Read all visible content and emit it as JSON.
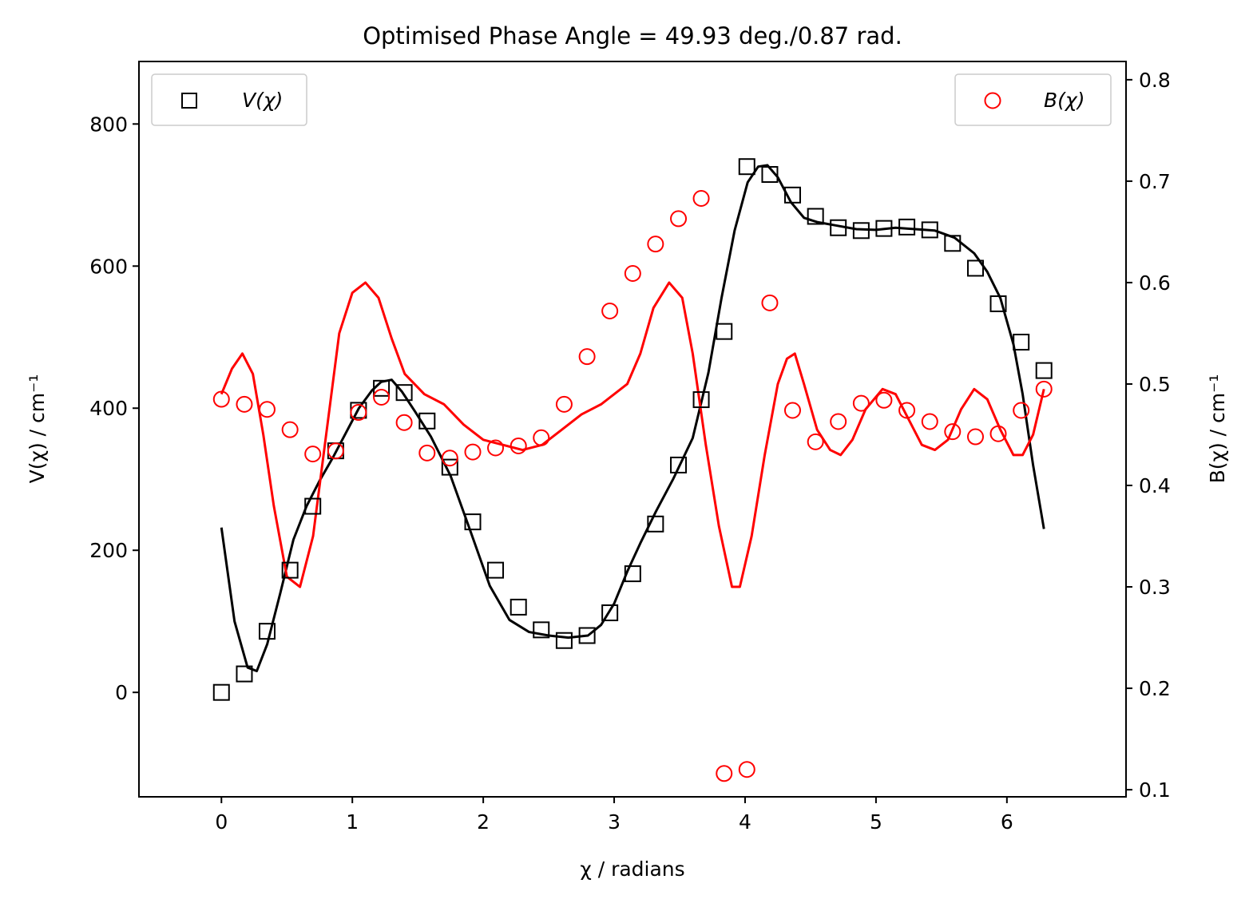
{
  "chart_data": {
    "type": "scatter",
    "title": "Optimised Phase Angle = 49.93 deg./0.87 rad.",
    "xlabel": "χ / radians",
    "ylabel_left": "V(χ) / cm⁻¹",
    "ylabel_right": "B(χ) / cm⁻¹",
    "xlim": [
      -0.63,
      6.91
    ],
    "ylim_left": [
      -147,
      888
    ],
    "ylim_right": [
      0.093,
      0.818
    ],
    "xticks": [
      0,
      1,
      2,
      3,
      4,
      5,
      6
    ],
    "yticks_left": [
      0,
      200,
      400,
      600,
      800
    ],
    "yticks_right": [
      0.1,
      0.2,
      0.3,
      0.4,
      0.5,
      0.6,
      0.7,
      0.8
    ],
    "legend_left": {
      "label": "V(χ)",
      "position": "upper left"
    },
    "legend_right": {
      "label": "B(χ)",
      "position": "upper right"
    },
    "colors": {
      "V": "#000000",
      "B": "#ff0000"
    },
    "series": [
      {
        "name": "V(χ)",
        "axis": "left",
        "marker": "square",
        "x": [
          0.0,
          0.175,
          0.349,
          0.524,
          0.698,
          0.873,
          1.047,
          1.222,
          1.396,
          1.571,
          1.745,
          1.92,
          2.094,
          2.269,
          2.443,
          2.618,
          2.793,
          2.967,
          3.142,
          3.316,
          3.491,
          3.665,
          3.84,
          4.014,
          4.189,
          4.363,
          4.538,
          4.712,
          4.887,
          5.061,
          5.236,
          5.411,
          5.585,
          5.76,
          5.934,
          6.109,
          6.283
        ],
        "y": [
          0,
          26,
          86,
          172,
          262,
          340,
          397,
          428,
          422,
          382,
          317,
          240,
          172,
          120,
          88,
          73,
          80,
          112,
          167,
          237,
          320,
          412,
          508,
          740,
          729,
          700,
          670,
          654,
          650,
          653,
          655,
          651,
          632,
          597,
          547,
          493,
          453
        ]
      },
      {
        "name": "B(χ)",
        "axis": "right",
        "marker": "circle",
        "x": [
          0.0,
          0.175,
          0.349,
          0.524,
          0.698,
          0.873,
          1.047,
          1.222,
          1.396,
          1.571,
          1.745,
          1.92,
          2.094,
          2.269,
          2.443,
          2.618,
          2.793,
          2.967,
          3.142,
          3.316,
          3.491,
          3.665,
          3.84,
          4.014,
          4.189,
          4.363,
          4.538,
          4.712,
          4.887,
          5.061,
          5.236,
          5.411,
          5.585,
          5.76,
          5.934,
          6.109,
          6.283
        ],
        "y": [
          0.485,
          0.48,
          0.475,
          0.455,
          0.431,
          0.434,
          0.472,
          0.487,
          0.462,
          0.432,
          0.427,
          0.433,
          0.437,
          0.439,
          0.447,
          0.48,
          0.527,
          0.572,
          0.609,
          0.638,
          0.663,
          0.683,
          0.116,
          0.12,
          0.58,
          0.474,
          0.443,
          0.463,
          0.481,
          0.484,
          0.474,
          0.463,
          0.453,
          0.448,
          0.451,
          0.474,
          0.495
        ]
      },
      {
        "name": "",
        "axis": "left",
        "style": "line",
        "x": [
          0.0,
          0.1,
          0.2,
          0.27,
          0.35,
          0.45,
          0.55,
          0.65,
          0.75,
          0.85,
          0.95,
          1.05,
          1.15,
          1.22,
          1.3,
          1.38,
          1.48,
          1.6,
          1.75,
          1.9,
          2.05,
          2.2,
          2.35,
          2.5,
          2.65,
          2.8,
          2.9,
          3.0,
          3.1,
          3.2,
          3.32,
          3.45,
          3.6,
          3.72,
          3.82,
          3.92,
          4.02,
          4.1,
          4.17,
          4.25,
          4.35,
          4.45,
          4.55,
          4.7,
          4.85,
          5.0,
          5.15,
          5.3,
          5.45,
          5.6,
          5.75,
          5.85,
          5.95,
          6.05,
          6.12,
          6.2,
          6.283
        ],
        "y": [
          232,
          100,
          35,
          30,
          68,
          140,
          215,
          262,
          298,
          330,
          365,
          400,
          425,
          437,
          440,
          423,
          395,
          360,
          305,
          228,
          150,
          102,
          85,
          80,
          77,
          80,
          95,
          125,
          170,
          210,
          255,
          300,
          358,
          450,
          555,
          650,
          718,
          740,
          742,
          725,
          690,
          668,
          662,
          657,
          652,
          651,
          654,
          652,
          650,
          640,
          618,
          592,
          555,
          490,
          420,
          320,
          230
        ]
      },
      {
        "name": "",
        "axis": "right",
        "style": "line",
        "x": [
          0.0,
          0.08,
          0.16,
          0.24,
          0.32,
          0.4,
          0.5,
          0.6,
          0.7,
          0.8,
          0.9,
          1.0,
          1.1,
          1.2,
          1.3,
          1.4,
          1.55,
          1.7,
          1.85,
          2.0,
          2.15,
          2.3,
          2.45,
          2.6,
          2.75,
          2.9,
          3.0,
          3.1,
          3.2,
          3.3,
          3.42,
          3.52,
          3.6,
          3.7,
          3.8,
          3.9,
          3.96,
          4.05,
          4.15,
          4.25,
          4.32,
          4.38,
          4.45,
          4.55,
          4.65,
          4.73,
          4.82,
          4.92,
          5.05,
          5.15,
          5.25,
          5.35,
          5.45,
          5.55,
          5.65,
          5.75,
          5.85,
          5.95,
          6.05,
          6.12,
          6.2,
          6.283
        ],
        "y": [
          0.49,
          0.515,
          0.53,
          0.51,
          0.45,
          0.38,
          0.31,
          0.3,
          0.35,
          0.45,
          0.55,
          0.59,
          0.6,
          0.585,
          0.545,
          0.51,
          0.49,
          0.48,
          0.46,
          0.445,
          0.44,
          0.435,
          0.44,
          0.455,
          0.47,
          0.48,
          0.49,
          0.5,
          0.53,
          0.575,
          0.6,
          0.585,
          0.53,
          0.44,
          0.36,
          0.3,
          0.3,
          0.35,
          0.43,
          0.5,
          0.525,
          0.53,
          0.5,
          0.455,
          0.435,
          0.43,
          0.445,
          0.475,
          0.495,
          0.49,
          0.465,
          0.44,
          0.435,
          0.445,
          0.475,
          0.495,
          0.485,
          0.455,
          0.43,
          0.43,
          0.45,
          0.495
        ]
      }
    ]
  }
}
